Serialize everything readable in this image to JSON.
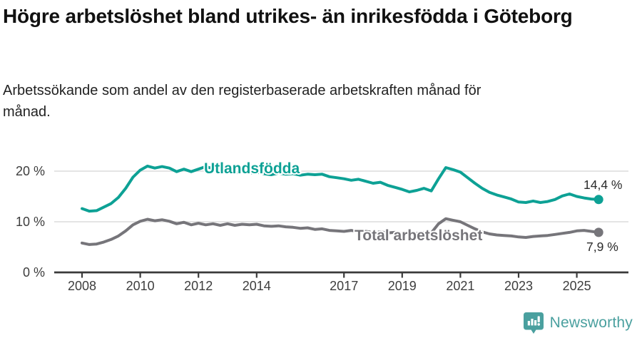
{
  "header": {
    "title": "Högre arbetslöshet bland utrikes- än inrikesfödda i Göteborg",
    "subtitle": "Arbetssökande som andel av den registerbaserade arbetskraften månad för månad."
  },
  "chart_data": {
    "type": "line",
    "y_unit": "%",
    "x": [
      2008,
      2008.25,
      2008.5,
      2008.75,
      2009,
      2009.25,
      2009.5,
      2009.75,
      2010,
      2010.25,
      2010.5,
      2010.75,
      2011,
      2011.25,
      2011.5,
      2011.75,
      2012,
      2012.25,
      2012.5,
      2012.75,
      2013,
      2013.25,
      2013.5,
      2013.75,
      2014,
      2014.25,
      2014.5,
      2014.75,
      2015,
      2015.25,
      2015.5,
      2015.75,
      2016,
      2016.25,
      2016.5,
      2016.75,
      2017,
      2017.25,
      2017.5,
      2017.75,
      2018,
      2018.25,
      2018.5,
      2018.75,
      2019,
      2019.25,
      2019.5,
      2019.75,
      2020,
      2020.25,
      2020.5,
      2020.75,
      2021,
      2021.25,
      2021.5,
      2021.75,
      2022,
      2022.25,
      2022.5,
      2022.75,
      2023,
      2023.25,
      2023.5,
      2023.75,
      2024,
      2024.25,
      2024.5,
      2024.75,
      2025,
      2025.25,
      2025.5,
      2025.75
    ],
    "series": [
      {
        "name": "Utlandsfödda",
        "color": "#0da195",
        "end_label": "14,4 %",
        "end_value": 14.4,
        "values": [
          12.6,
          12.1,
          12.2,
          12.9,
          13.6,
          14.8,
          16.6,
          18.8,
          20.2,
          21.0,
          20.6,
          20.9,
          20.6,
          19.9,
          20.4,
          19.9,
          20.4,
          20.9,
          20.5,
          20.8,
          20.3,
          19.6,
          19.9,
          19.6,
          19.8,
          19.5,
          19.3,
          19.6,
          19.4,
          19.5,
          19.2,
          19.4,
          19.3,
          19.4,
          18.9,
          18.7,
          18.5,
          18.2,
          18.4,
          18.0,
          17.6,
          17.8,
          17.2,
          16.8,
          16.4,
          15.9,
          16.2,
          16.6,
          16.1,
          18.5,
          20.7,
          20.3,
          19.8,
          18.7,
          17.6,
          16.6,
          15.8,
          15.3,
          14.9,
          14.5,
          13.9,
          13.8,
          14.1,
          13.8,
          14.0,
          14.4,
          15.1,
          15.5,
          15.0,
          14.7,
          14.5,
          14.4
        ]
      },
      {
        "name": "Total arbetslöshet",
        "color": "#76757a",
        "end_label": "7,9 %",
        "end_value": 7.9,
        "values": [
          5.8,
          5.5,
          5.6,
          6.0,
          6.5,
          7.2,
          8.2,
          9.4,
          10.1,
          10.5,
          10.2,
          10.4,
          10.1,
          9.6,
          9.9,
          9.4,
          9.7,
          9.4,
          9.6,
          9.3,
          9.6,
          9.3,
          9.5,
          9.4,
          9.5,
          9.2,
          9.1,
          9.2,
          9.0,
          8.9,
          8.7,
          8.8,
          8.5,
          8.6,
          8.3,
          8.2,
          8.1,
          8.3,
          8.0,
          8.1,
          7.9,
          8.0,
          7.8,
          7.9,
          7.7,
          7.6,
          7.7,
          7.9,
          7.8,
          9.6,
          10.6,
          10.3,
          10.0,
          9.3,
          8.6,
          8.0,
          7.6,
          7.4,
          7.3,
          7.2,
          7.0,
          6.9,
          7.1,
          7.2,
          7.3,
          7.5,
          7.7,
          7.9,
          8.2,
          8.3,
          8.1,
          7.9
        ]
      }
    ],
    "x_ticks": [
      2008,
      2010,
      2012,
      2014,
      2017,
      2019,
      2021,
      2023,
      2025
    ],
    "y_ticks": [
      {
        "value": 0,
        "label": "0 %"
      },
      {
        "value": 10,
        "label": "10 %"
      },
      {
        "value": 20,
        "label": "20 %"
      }
    ],
    "ylim": [
      0,
      23
    ],
    "grid": "horizontal-light",
    "legend": "inline-series-labels"
  },
  "footer": {
    "brand": "Newsworthy",
    "brand_color": "#4aa09f",
    "icon": "newsworthy-bubble-chart-icon"
  }
}
